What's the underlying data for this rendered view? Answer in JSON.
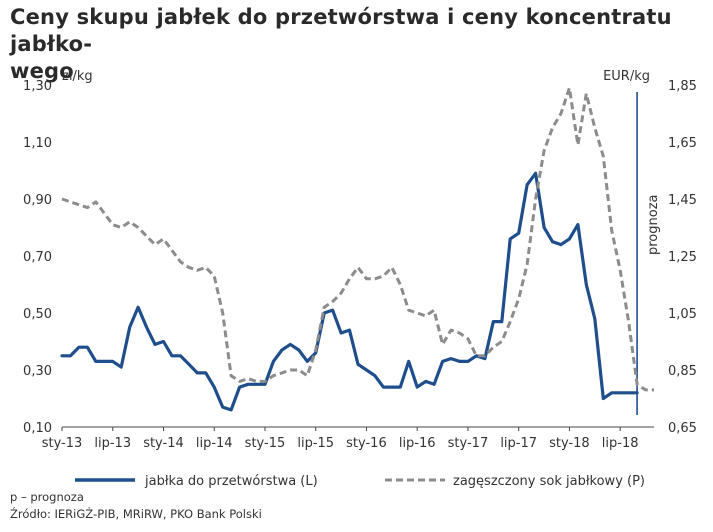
{
  "title": "Ceny skupu jabłek do przetwórstwa i ceny koncentratu jabłko-wego",
  "title_line1": "Ceny skupu jabłek do przetwórstwa i ceny koncentratu jabłko-",
  "title_line2": "wego",
  "footnote": "p – prognoza",
  "source": "Źródło: IERiGŻ-PIB, MRiRW, PKO Bank Polski",
  "colors": {
    "apples": "#1f4e8c",
    "concentrate": "#8c8c8c",
    "forecast_line": "#1f4e8c"
  },
  "chart_data": {
    "type": "line",
    "title": "Ceny skupu jabłek do przetwórstwa i ceny koncentratu jabłko-wego",
    "y_left": {
      "label": "zł/kg",
      "lim": [
        0.1,
        1.3
      ],
      "ticks": [
        "0,10",
        "0,30",
        "0,50",
        "0,70",
        "0,90",
        "1,10",
        "1,30"
      ],
      "tick_values": [
        0.1,
        0.3,
        0.5,
        0.7,
        0.9,
        1.1,
        1.3
      ]
    },
    "y_right": {
      "label": "EUR/kg",
      "lim": [
        0.65,
        1.85
      ],
      "ticks": [
        "0,65",
        "0,85",
        "1,05",
        "1,25",
        "1,45",
        "1,65",
        "1,85"
      ],
      "tick_values": [
        0.65,
        0.85,
        1.05,
        1.25,
        1.45,
        1.65,
        1.85
      ]
    },
    "x_ticks": [
      "sty-13",
      "lip-13",
      "sty-14",
      "lip-14",
      "sty-15",
      "lip-15",
      "sty-16",
      "lip-16",
      "sty-17",
      "lip-17",
      "sty-18",
      "lip-18"
    ],
    "x_tick_values": [
      0,
      6,
      12,
      18,
      24,
      30,
      36,
      42,
      48,
      54,
      60,
      66
    ],
    "x_range": [
      0,
      70
    ],
    "forecast_marker": {
      "x": 68,
      "label": "prognoza"
    },
    "grid": false,
    "legend_position": "bottom",
    "series": [
      {
        "name": "jabłka do przetwórstwa (L)",
        "axis": "left",
        "style": "solid",
        "x": [
          0,
          1,
          2,
          3,
          4,
          5,
          6,
          7,
          8,
          9,
          10,
          11,
          12,
          13,
          14,
          15,
          16,
          17,
          18,
          19,
          20,
          21,
          22,
          23,
          24,
          25,
          26,
          27,
          28,
          29,
          30,
          31,
          32,
          33,
          34,
          35,
          36,
          37,
          38,
          39,
          40,
          41,
          42,
          43,
          44,
          45,
          46,
          47,
          48,
          49,
          50,
          51,
          52,
          53,
          54,
          55,
          56,
          57,
          58,
          59,
          60,
          61,
          62,
          63,
          64,
          65,
          66,
          67,
          68
        ],
        "values": [
          0.35,
          0.35,
          0.38,
          0.38,
          0.33,
          0.33,
          0.33,
          0.31,
          0.45,
          0.52,
          0.45,
          0.39,
          0.4,
          0.35,
          0.35,
          0.32,
          0.29,
          0.29,
          0.24,
          0.17,
          0.16,
          0.24,
          0.25,
          0.25,
          0.25,
          0.33,
          0.37,
          0.39,
          0.37,
          0.33,
          0.36,
          0.5,
          0.51,
          0.43,
          0.44,
          0.32,
          0.3,
          0.28,
          0.24,
          0.24,
          0.24,
          0.33,
          0.24,
          0.26,
          0.25,
          0.33,
          0.34,
          0.33,
          0.33,
          0.35,
          0.34,
          0.47,
          0.47,
          0.76,
          0.78,
          0.95,
          0.99,
          0.8,
          0.75,
          0.74,
          0.76,
          0.81,
          0.6,
          0.48,
          0.2,
          0.22,
          0.22,
          0.22,
          0.22
        ]
      },
      {
        "name": "zagęszczony sok jabłkowy (P)",
        "axis": "right",
        "style": "dashed",
        "x": [
          0,
          1,
          2,
          3,
          4,
          5,
          6,
          7,
          8,
          9,
          10,
          11,
          12,
          13,
          14,
          15,
          16,
          17,
          18,
          19,
          20,
          21,
          22,
          23,
          24,
          25,
          26,
          27,
          28,
          29,
          30,
          31,
          32,
          33,
          34,
          35,
          36,
          37,
          38,
          39,
          40,
          41,
          42,
          43,
          44,
          45,
          46,
          47,
          48,
          49,
          50,
          51,
          52,
          53,
          54,
          55,
          56,
          57,
          58,
          59,
          60,
          61,
          62,
          63,
          64,
          65,
          66,
          67,
          68,
          69,
          70
        ],
        "values": [
          1.45,
          1.44,
          1.43,
          1.42,
          1.44,
          1.4,
          1.36,
          1.35,
          1.37,
          1.35,
          1.32,
          1.29,
          1.31,
          1.27,
          1.23,
          1.21,
          1.2,
          1.21,
          1.18,
          1.05,
          0.83,
          0.81,
          0.82,
          0.81,
          0.81,
          0.83,
          0.84,
          0.85,
          0.85,
          0.83,
          0.92,
          1.07,
          1.09,
          1.12,
          1.17,
          1.21,
          1.17,
          1.17,
          1.18,
          1.21,
          1.15,
          1.06,
          1.05,
          1.04,
          1.06,
          0.94,
          0.99,
          0.98,
          0.96,
          0.9,
          0.9,
          0.93,
          0.95,
          1.02,
          1.1,
          1.22,
          1.45,
          1.62,
          1.7,
          1.75,
          1.84,
          1.64,
          1.82,
          1.7,
          1.6,
          1.34,
          1.2,
          1.02,
          0.8,
          0.78,
          0.78
        ]
      }
    ]
  }
}
